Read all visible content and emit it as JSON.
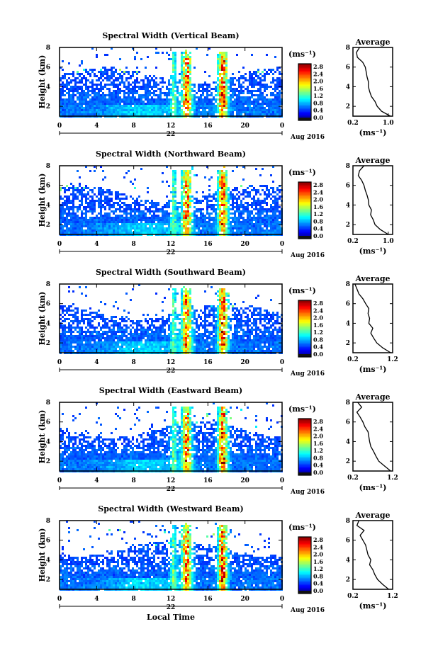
{
  "chart_data": [
    {
      "type": "heatmap",
      "title": "Spectral Width (Vertical Beam)",
      "ylabel": "Height (km)",
      "yticks": [
        "2",
        "4",
        "6",
        "8"
      ],
      "ylim": [
        1,
        8
      ],
      "xticks": [
        "0",
        "4",
        "8",
        "12",
        "16",
        "20",
        "0"
      ],
      "xlim": [
        0,
        24
      ],
      "date_center": "22",
      "date_right": "Aug 2016",
      "colorbar_unit": "(ms⁻¹)",
      "colorbar_ticks": [
        "2.8",
        "2.4",
        "2.0",
        "1.6",
        "1.2",
        "0.8",
        "0.4",
        "0.0"
      ],
      "profile": {
        "title": "Average",
        "xlabel": "(ms⁻¹)",
        "xticks": [
          "0.2",
          "1.0"
        ],
        "xlim": [
          0.2,
          1.1
        ],
        "yticks": [
          "2",
          "4",
          "6",
          "8"
        ],
        "ylim": [
          1,
          8
        ],
        "x": [
          1.05,
          0.85,
          0.75,
          0.7,
          0.62,
          0.58,
          0.55,
          0.55,
          0.52,
          0.5,
          0.48,
          0.42,
          0.3,
          0.28,
          0.35
        ],
        "y": [
          1.0,
          1.5,
          2.0,
          2.5,
          3.0,
          3.5,
          4.0,
          4.5,
          5.0,
          5.5,
          6.0,
          6.5,
          7.0,
          7.5,
          8.0
        ]
      }
    },
    {
      "type": "heatmap",
      "title": "Spectral Width (Northward Beam)",
      "ylabel": "Height (km)",
      "yticks": [
        "2",
        "4",
        "6",
        "8"
      ],
      "ylim": [
        1,
        8
      ],
      "xticks": [
        "0",
        "4",
        "8",
        "12",
        "16",
        "20",
        "0"
      ],
      "xlim": [
        0,
        24
      ],
      "date_center": "22",
      "date_right": "Aug 2016",
      "colorbar_unit": "(ms⁻¹)",
      "colorbar_ticks": [
        "2.8",
        "2.4",
        "2.0",
        "1.6",
        "1.2",
        "0.8",
        "0.4",
        "0.0"
      ],
      "profile": {
        "title": "Average",
        "xlabel": "(ms⁻¹)",
        "xticks": [
          "0.2",
          "1.0"
        ],
        "xlim": [
          0.2,
          1.1
        ],
        "yticks": [
          "2",
          "4",
          "6",
          "8"
        ],
        "ylim": [
          1,
          8
        ],
        "x": [
          1.0,
          0.82,
          0.7,
          0.66,
          0.6,
          0.62,
          0.56,
          0.55,
          0.52,
          0.48,
          0.45,
          0.4,
          0.32,
          0.35,
          0.45
        ],
        "y": [
          1.0,
          1.5,
          2.0,
          2.5,
          3.0,
          3.5,
          4.0,
          4.5,
          5.0,
          5.5,
          6.0,
          6.5,
          7.0,
          7.5,
          8.0
        ]
      }
    },
    {
      "type": "heatmap",
      "title": "Spectral Width (Southward Beam)",
      "ylabel": "Height (km)",
      "yticks": [
        "2",
        "4",
        "6",
        "8"
      ],
      "ylim": [
        1,
        8
      ],
      "xticks": [
        "0",
        "4",
        "8",
        "12",
        "16",
        "20",
        "0"
      ],
      "xlim": [
        0,
        24
      ],
      "date_center": "22",
      "date_right": "Aug 2016",
      "colorbar_unit": "(ms⁻¹)",
      "colorbar_ticks": [
        "2.8",
        "2.4",
        "2.0",
        "1.6",
        "1.2",
        "0.8",
        "0.4",
        "0.0"
      ],
      "profile": {
        "title": "Average",
        "xlabel": "(ms⁻¹)",
        "xticks": [
          "0.2",
          "1.2"
        ],
        "xlim": [
          0.2,
          1.2
        ],
        "yticks": [
          "2",
          "4",
          "6",
          "8"
        ],
        "ylim": [
          1,
          8
        ],
        "x": [
          1.15,
          0.95,
          0.8,
          0.72,
          0.65,
          0.7,
          0.6,
          0.62,
          0.58,
          0.6,
          0.52,
          0.45,
          0.35,
          0.3,
          0.25
        ],
        "y": [
          1.0,
          1.5,
          2.0,
          2.5,
          3.0,
          3.5,
          4.0,
          4.5,
          5.0,
          5.5,
          6.0,
          6.5,
          7.0,
          7.5,
          8.0
        ]
      }
    },
    {
      "type": "heatmap",
      "title": "Spectral Width (Eastward Beam)",
      "ylabel": "Height (km)",
      "yticks": [
        "2",
        "4",
        "6",
        "8"
      ],
      "ylim": [
        1,
        8
      ],
      "xticks": [
        "0",
        "4",
        "8",
        "12",
        "16",
        "20",
        "0"
      ],
      "xlim": [
        0,
        24
      ],
      "date_center": "22",
      "date_right": "Aug 2016",
      "colorbar_unit": "(ms⁻¹)",
      "colorbar_ticks": [
        "2.8",
        "2.4",
        "2.0",
        "1.6",
        "1.2",
        "0.8",
        "0.4",
        "0.0"
      ],
      "profile": {
        "title": "Average",
        "xlabel": "(ms⁻¹)",
        "xticks": [
          "0.2",
          "1.2"
        ],
        "xlim": [
          0.2,
          1.2
        ],
        "yticks": [
          "2",
          "4",
          "6",
          "8"
        ],
        "ylim": [
          1,
          8
        ],
        "x": [
          1.15,
          1.0,
          0.85,
          0.78,
          0.72,
          0.65,
          0.62,
          0.6,
          0.58,
          0.5,
          0.45,
          0.38,
          0.3,
          0.42,
          0.32
        ],
        "y": [
          1.0,
          1.5,
          2.0,
          2.5,
          3.0,
          3.5,
          4.0,
          4.5,
          5.0,
          5.5,
          6.0,
          6.5,
          7.0,
          7.5,
          8.0
        ]
      }
    },
    {
      "type": "heatmap",
      "title": "Spectral Width (Westward Beam)",
      "ylabel": "Height (km)",
      "yticks": [
        "2",
        "4",
        "6",
        "8"
      ],
      "ylim": [
        1,
        8
      ],
      "xticks": [
        "0",
        "4",
        "8",
        "12",
        "16",
        "20",
        "0"
      ],
      "xlim": [
        0,
        24
      ],
      "date_center": "22",
      "date_right": "Aug 2016",
      "xlabel": "Local Time",
      "colorbar_unit": "(ms⁻¹)",
      "colorbar_ticks": [
        "2.8",
        "2.4",
        "2.0",
        "1.6",
        "1.2",
        "0.8",
        "0.4",
        "0.0"
      ],
      "profile": {
        "title": "Average",
        "xlabel": "(ms⁻¹)",
        "xticks": [
          "0.2",
          "1.2"
        ],
        "xlim": [
          0.2,
          1.2
        ],
        "yticks": [
          "2",
          "4",
          "6",
          "8"
        ],
        "ylim": [
          1,
          8
        ],
        "x": [
          1.1,
          0.95,
          0.82,
          0.75,
          0.7,
          0.62,
          0.65,
          0.58,
          0.55,
          0.52,
          0.45,
          0.38,
          0.48,
          0.3,
          0.35
        ],
        "y": [
          1.0,
          1.5,
          2.0,
          2.5,
          3.0,
          3.5,
          4.0,
          4.5,
          5.0,
          5.5,
          6.0,
          6.5,
          7.0,
          7.5,
          8.0
        ]
      }
    }
  ]
}
